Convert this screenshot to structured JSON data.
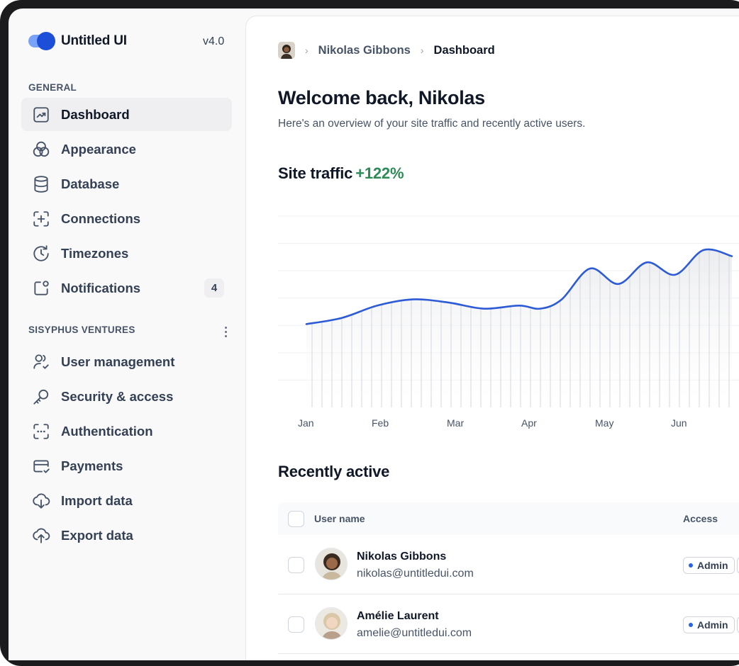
{
  "brand": {
    "name": "Untitled UI",
    "version": "v4.0"
  },
  "sidebar": {
    "general_label": "GENERAL",
    "general_items": [
      {
        "label": "Dashboard",
        "icon": "trend-chart-icon",
        "active": true
      },
      {
        "label": "Appearance",
        "icon": "color-circles-icon"
      },
      {
        "label": "Database",
        "icon": "database-icon"
      },
      {
        "label": "Connections",
        "icon": "add-frame-icon"
      },
      {
        "label": "Timezones",
        "icon": "clock-icon"
      },
      {
        "label": "Notifications",
        "icon": "notification-box-icon",
        "badge": "4"
      }
    ],
    "workspace_label": "SISYPHUS VENTURES",
    "workspace_items": [
      {
        "label": "User management",
        "icon": "user-check-icon"
      },
      {
        "label": "Security & access",
        "icon": "key-icon"
      },
      {
        "label": "Authentication",
        "icon": "dashed-frame-icon"
      },
      {
        "label": "Payments",
        "icon": "credit-card-icon"
      },
      {
        "label": "Import data",
        "icon": "cloud-download-icon"
      },
      {
        "label": "Export data",
        "icon": "cloud-upload-icon"
      }
    ]
  },
  "breadcrumb": {
    "user": "Nikolas Gibbons",
    "current": "Dashboard"
  },
  "header": {
    "title": "Welcome back, Nikolas",
    "subtitle": "Here's an overview of your site traffic and recently active users."
  },
  "traffic": {
    "label": "Site traffic",
    "delta": "+122%",
    "delta_color": "#2e8b57"
  },
  "chart_data": {
    "type": "area",
    "categories": [
      "Jan",
      "Feb",
      "Mar",
      "Apr",
      "May",
      "Jun"
    ],
    "x": [
      0.0,
      0.5,
      1.0,
      1.5,
      2.0,
      2.5,
      3.0,
      3.3,
      3.6,
      4.0,
      4.4,
      4.8,
      5.2,
      5.6,
      6.0
    ],
    "y": [
      27,
      29,
      33,
      35,
      34,
      32,
      33,
      32,
      35,
      45,
      40,
      47,
      43,
      51,
      49
    ],
    "line_color": "#2d5bd6",
    "grid": "horizontal"
  },
  "recent": {
    "title": "Recently active",
    "columns": {
      "name": "User name",
      "access": "Access"
    },
    "rows": [
      {
        "name": "Nikolas Gibbons",
        "email": "nikolas@untitledui.com",
        "access": "Admin"
      },
      {
        "name": "Amélie Laurent",
        "email": "amelie@untitledui.com",
        "access": "Admin"
      }
    ]
  },
  "colors": {
    "accent": "#1d4ed8",
    "active_nav_bg": "#efeff1"
  }
}
